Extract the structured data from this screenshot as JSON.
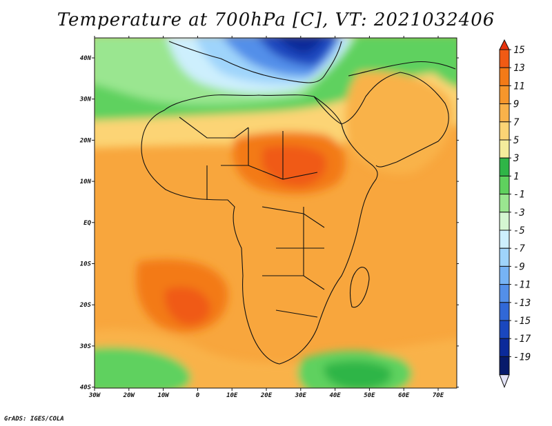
{
  "title": "Temperature at 700hPa [C], VT: 2021032406",
  "credit": "GrADS: IGES/COLA",
  "map": {
    "lon_labels": [
      "30W",
      "20W",
      "10W",
      "0",
      "10E",
      "20E",
      "30E",
      "40E",
      "50E",
      "60E",
      "70E"
    ],
    "lat_labels": [
      "40N",
      "30N",
      "20N",
      "10N",
      "EQ",
      "10S",
      "20S",
      "30S",
      "40S"
    ]
  },
  "colorbar": {
    "labels": [
      "15",
      "13",
      "11",
      "9",
      "7",
      "5",
      "3",
      "1",
      "-1",
      "-3",
      "-5",
      "-7",
      "-9",
      "-11",
      "-13",
      "-15",
      "-17",
      "-19"
    ],
    "colors": [
      "#e8330d",
      "#f05a14",
      "#f37a17",
      "#f6962b",
      "#f9b24a",
      "#fcd475",
      "#f4ec9c",
      "#2fb547",
      "#5fd15e",
      "#9ae690",
      "#d5f6d2",
      "#cdeffd",
      "#9fd4fb",
      "#76b3f5",
      "#538fe9",
      "#3168d7",
      "#1a47be",
      "#0b2a9a",
      "#071a6b",
      "#e3e3f7"
    ]
  }
}
